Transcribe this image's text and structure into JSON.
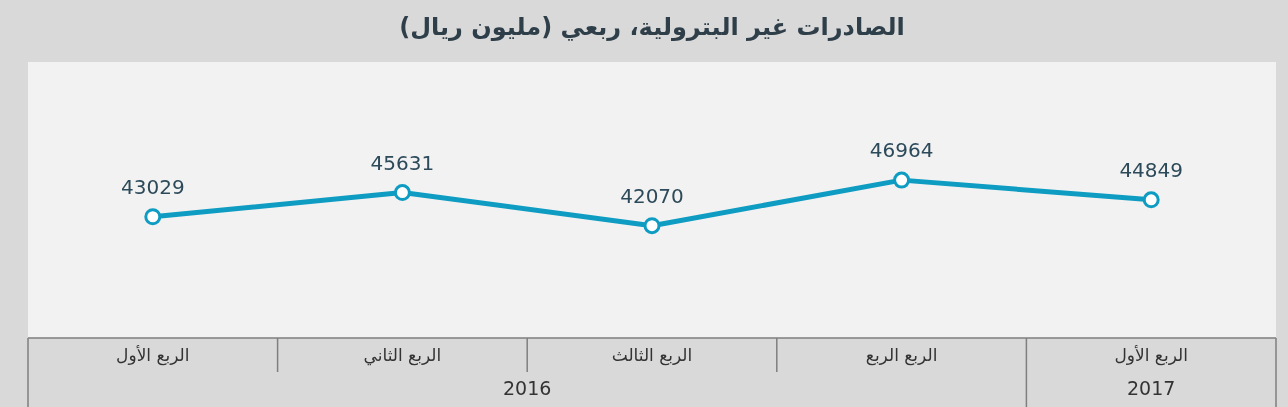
{
  "chart_data": {
    "type": "line",
    "title": "الصادرات غير البترولية، ربعي (مليون ريال)",
    "categories": [
      "الربع الأول",
      "الربع الثاني",
      "الربع الثالث",
      "الربع الربع",
      "الربع الأول"
    ],
    "series": [
      {
        "color": "#0e9cc2",
        "values": [
          43029,
          45631,
          42070,
          46964,
          44849
        ]
      }
    ],
    "data_labels": true,
    "marker": "circle",
    "legend": false,
    "grid": false,
    "tick_labels": "x",
    "annotations": [
      "2016",
      "2017"
    ]
  }
}
